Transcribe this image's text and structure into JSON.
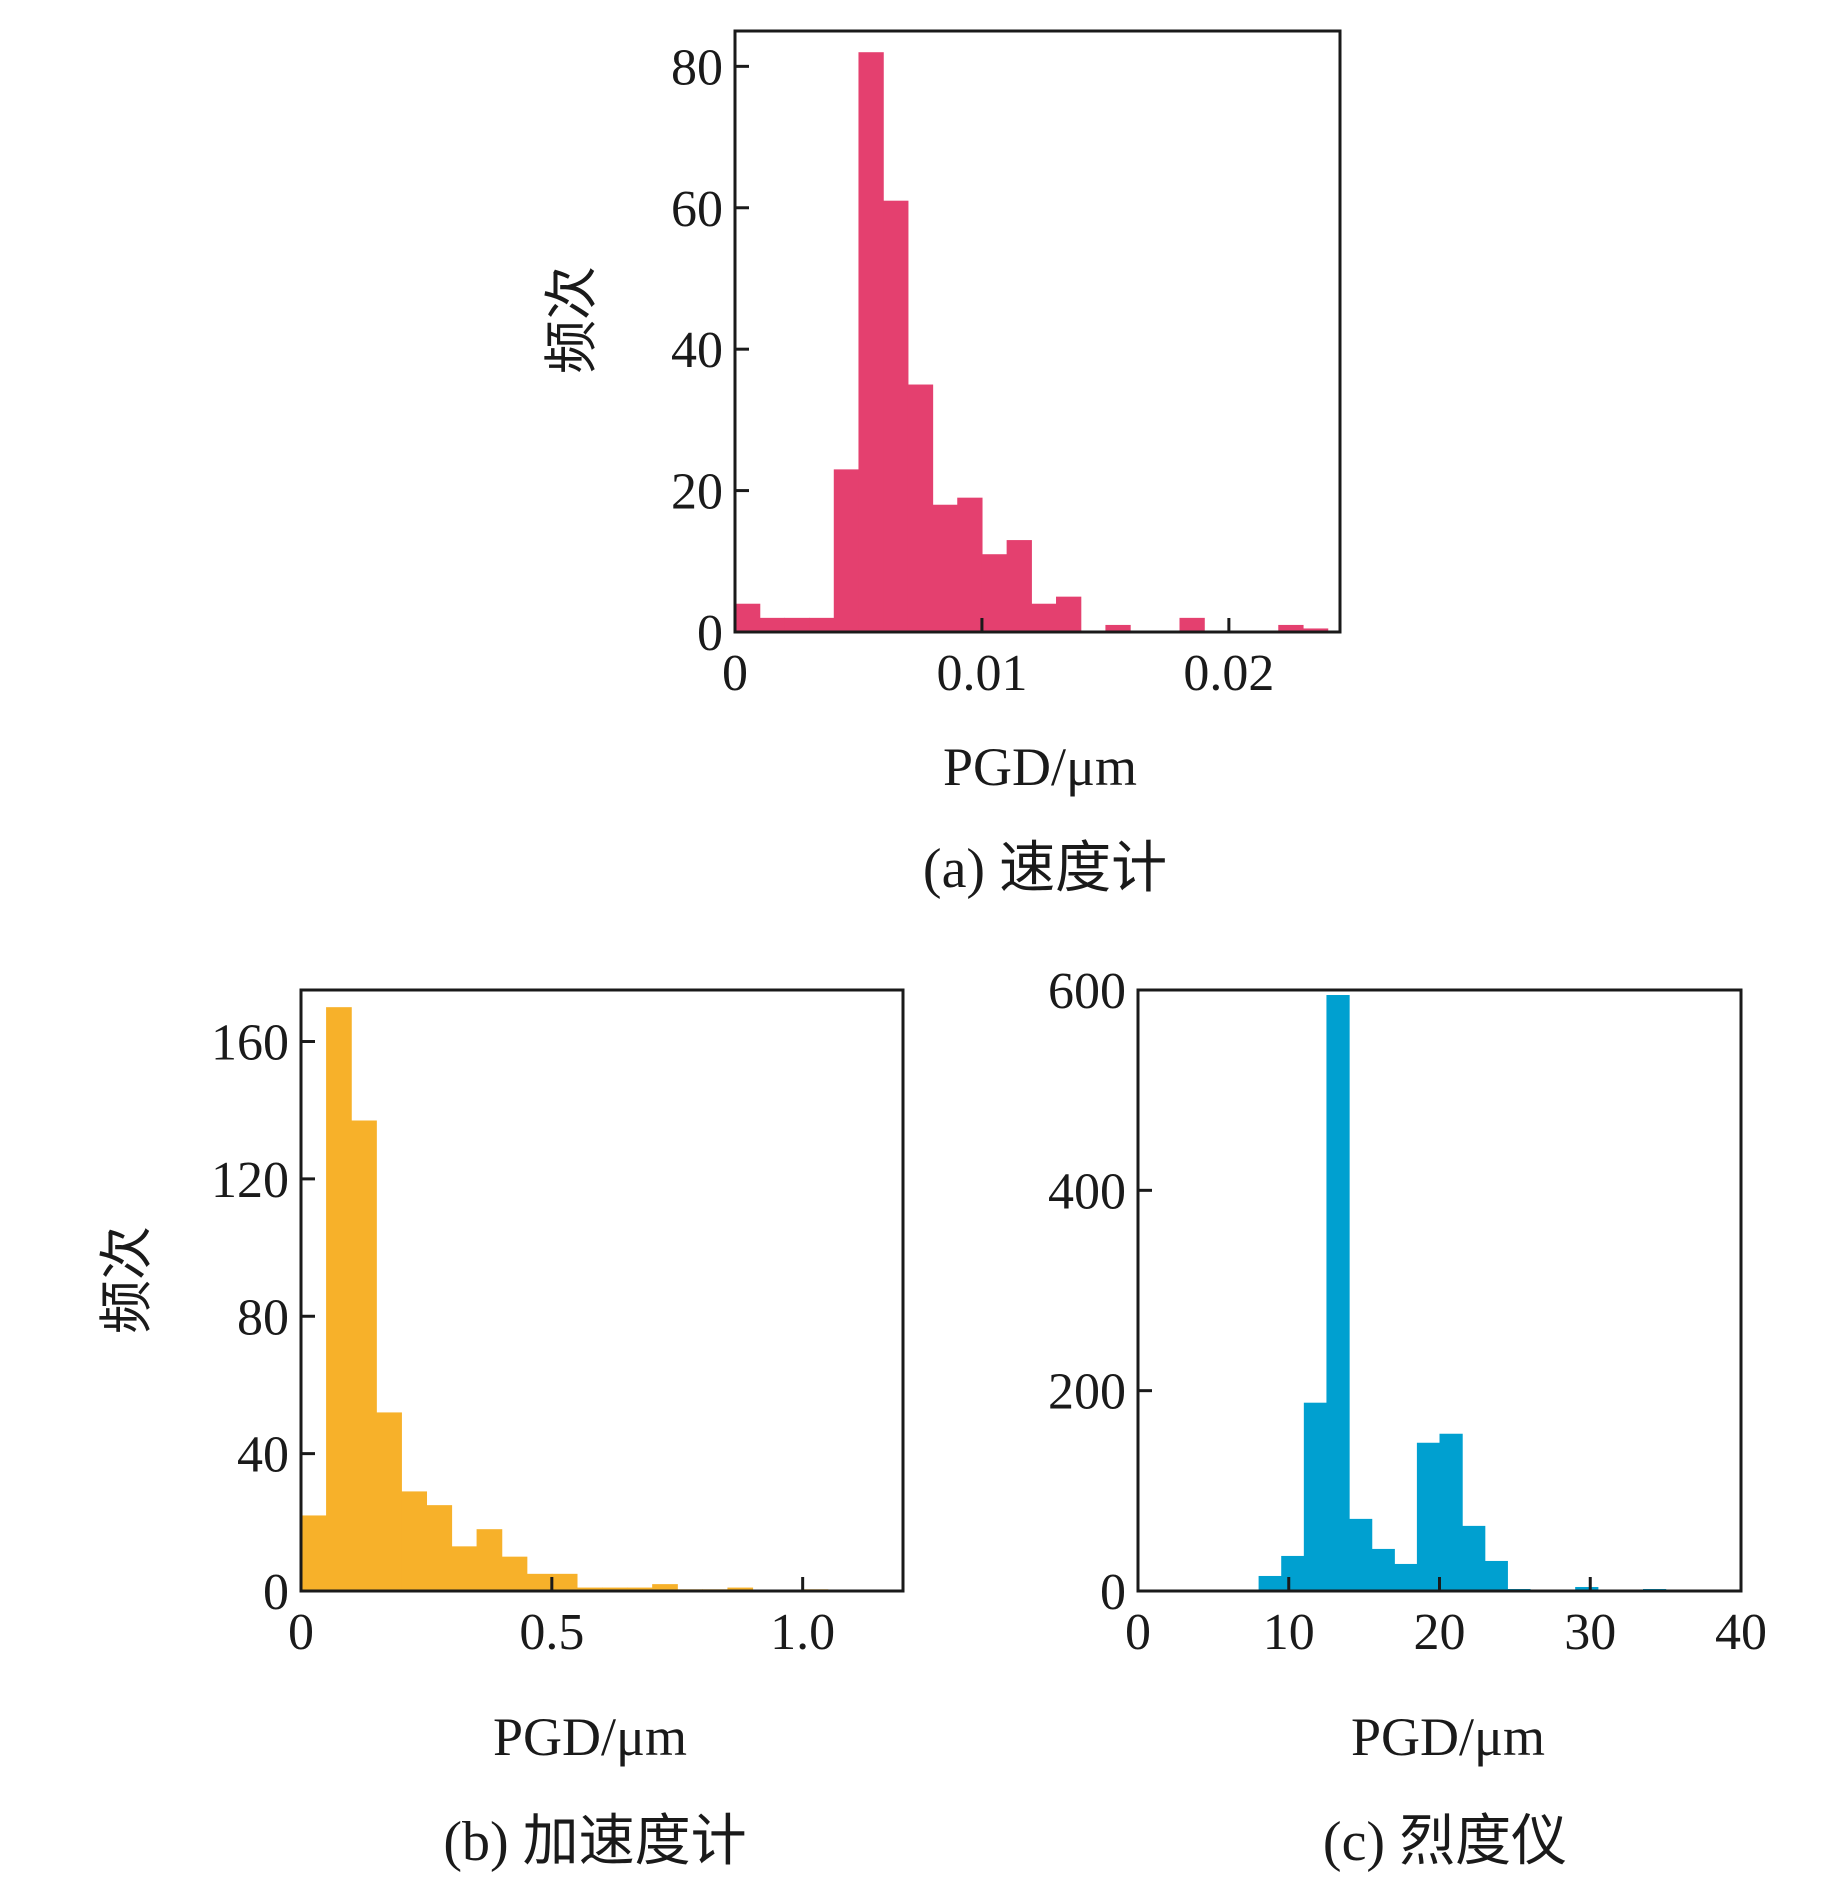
{
  "chart_data": [
    {
      "id": "a",
      "type": "bar",
      "caption": "(a) 速度计",
      "xlabel": "PGD/μm",
      "ylabel": "频次",
      "color": "#e4406f",
      "xlim": [
        0,
        0.0245
      ],
      "ylim": [
        0,
        85
      ],
      "xticks": [
        0,
        0.01,
        0.02
      ],
      "xtick_labels": [
        "0",
        "0.01",
        "0.02"
      ],
      "yticks": [
        0,
        20,
        40,
        60,
        80
      ],
      "ytick_labels": [
        "0",
        "20",
        "40",
        "60",
        "80"
      ],
      "bin_width": 0.001,
      "bins": [
        0,
        0.001,
        0.002,
        0.003,
        0.004,
        0.005,
        0.006,
        0.007,
        0.008,
        0.009,
        0.01,
        0.011,
        0.012,
        0.013,
        0.014,
        0.015,
        0.016,
        0.017,
        0.018,
        0.019,
        0.02,
        0.021,
        0.022,
        0.023
      ],
      "values": [
        4,
        2,
        2,
        2,
        23,
        82,
        61,
        35,
        18,
        19,
        11,
        13,
        4,
        5,
        0,
        1,
        0,
        0,
        2,
        0,
        0,
        0,
        1,
        0.5
      ]
    },
    {
      "id": "b",
      "type": "bar",
      "caption": "(b) 加速度计",
      "xlabel": "PGD/μm",
      "ylabel": "频次",
      "color": "#f7b12a",
      "xlim": [
        0,
        1.2
      ],
      "ylim": [
        0,
        175
      ],
      "xticks": [
        0,
        0.5,
        1.0
      ],
      "xtick_labels": [
        "0",
        "0.5",
        "1.0"
      ],
      "yticks": [
        0,
        40,
        80,
        120,
        160
      ],
      "ytick_labels": [
        "0",
        "40",
        "80",
        "120",
        "160"
      ],
      "bin_width": 0.05,
      "bins": [
        0,
        0.05,
        0.1,
        0.15,
        0.2,
        0.25,
        0.3,
        0.35,
        0.4,
        0.45,
        0.5,
        0.55,
        0.6,
        0.65,
        0.7,
        0.75,
        0.8,
        0.85,
        0.9,
        0.95,
        1.0,
        1.05,
        1.1,
        1.15
      ],
      "values": [
        22,
        170,
        137,
        52,
        29,
        25,
        13,
        18,
        10,
        5,
        5,
        1,
        1,
        1,
        2,
        0.5,
        0.5,
        1,
        0,
        0,
        0.5,
        0,
        0,
        0
      ]
    },
    {
      "id": "c",
      "type": "bar",
      "caption": "(c) 烈度仪",
      "xlabel": "PGD/μm",
      "ylabel": "",
      "color": "#00a0d0",
      "xlim": [
        0,
        40
      ],
      "ylim": [
        0,
        600
      ],
      "xticks": [
        0,
        10,
        20,
        30,
        40
      ],
      "xtick_labels": [
        "0",
        "10",
        "20",
        "30",
        "40"
      ],
      "yticks": [
        0,
        200,
        400,
        600
      ],
      "ytick_labels": [
        "0",
        "200",
        "400",
        "600"
      ],
      "bin_width": 1.5,
      "bins": [
        8,
        9.5,
        11,
        12.5,
        14,
        15.5,
        17,
        18.5,
        20,
        21.5,
        23,
        24.5,
        26,
        27.5,
        29,
        30.5,
        32,
        33.5
      ],
      "values": [
        15,
        35,
        188,
        595,
        72,
        42,
        27,
        148,
        157,
        65,
        30,
        2,
        1,
        1,
        4,
        0,
        0,
        2
      ]
    }
  ]
}
